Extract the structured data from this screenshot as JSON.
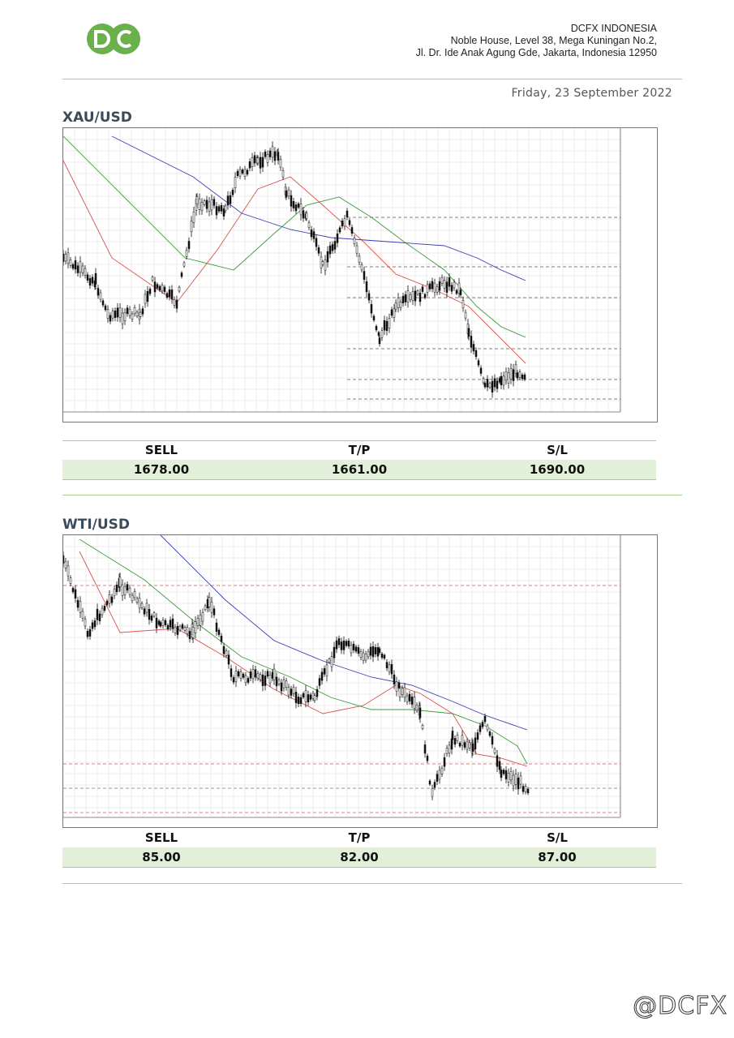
{
  "header": {
    "company_name": "DCFX INDONESIA",
    "address_line1": "Noble House, Level 38, Mega Kuningan No.2,",
    "address_line2": "Jl. Dr. Ide Anak Agung Gde, Jakarta, Indonesia 12950",
    "logo_text": "DC",
    "brand_color": "#6ab04c"
  },
  "date": "Friday, 23 September 2022",
  "charts": [
    {
      "title": "XAU/USD",
      "trade": {
        "headers": [
          "SELL",
          "T/P",
          "S/L"
        ],
        "values": [
          "1678.00",
          "1661.00",
          "1690.00"
        ]
      }
    },
    {
      "title": "WTI/USD",
      "trade": {
        "headers": [
          "SELL",
          "T/P",
          "S/L"
        ],
        "values": [
          "85.00",
          "82.00",
          "87.00"
        ]
      }
    }
  ],
  "watermark": "@DCFX"
}
